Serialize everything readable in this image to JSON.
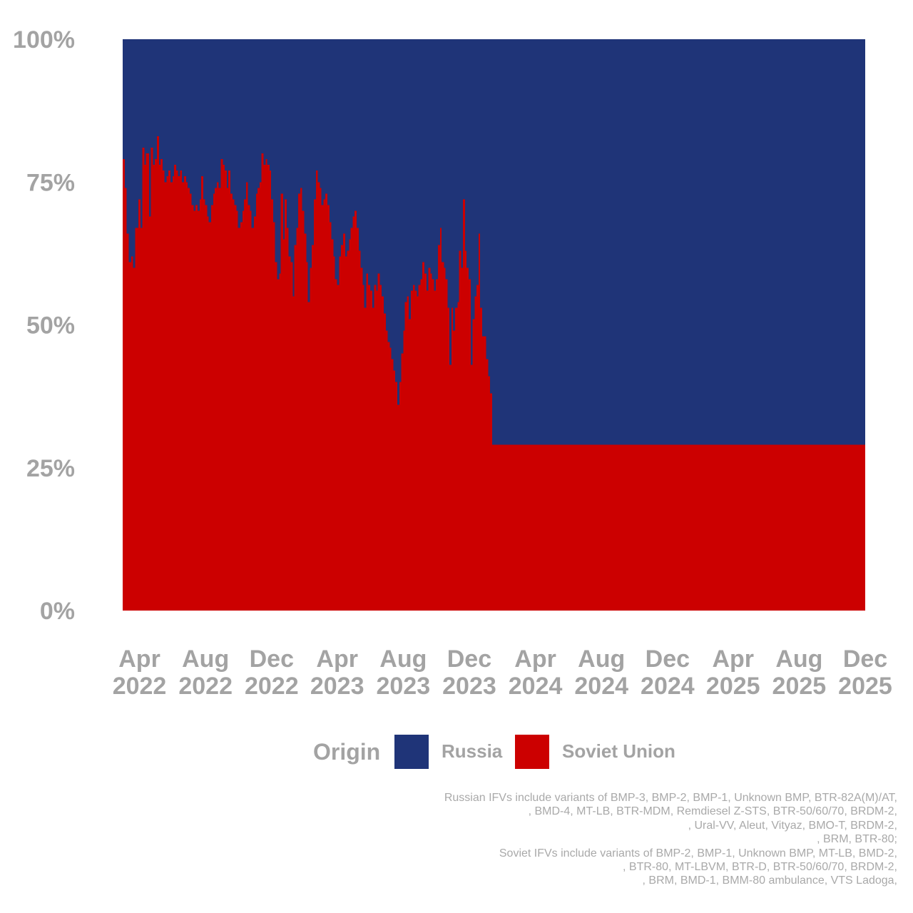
{
  "chart_data": {
    "type": "area",
    "subtype": "100% stacked step area",
    "legend_title": "Origin",
    "legend_placement": "bottom",
    "grid": false,
    "ylim": [
      0,
      100
    ],
    "y_ticks": [
      "0%",
      "25%",
      "50%",
      "75%",
      "100%"
    ],
    "x_ticks": [
      {
        "date": "2022-04-01",
        "month": "Apr",
        "year": "2022"
      },
      {
        "date": "2022-08-01",
        "month": "Aug",
        "year": "2022"
      },
      {
        "date": "2022-12-01",
        "month": "Dec",
        "year": "2022"
      },
      {
        "date": "2023-04-01",
        "month": "Apr",
        "year": "2023"
      },
      {
        "date": "2023-08-01",
        "month": "Aug",
        "year": "2023"
      },
      {
        "date": "2023-12-01",
        "month": "Dec",
        "year": "2023"
      },
      {
        "date": "2024-04-01",
        "month": "Apr",
        "year": "2024"
      },
      {
        "date": "2024-08-01",
        "month": "Aug",
        "year": "2024"
      },
      {
        "date": "2024-12-01",
        "month": "Dec",
        "year": "2024"
      },
      {
        "date": "2025-04-01",
        "month": "Apr",
        "year": "2025"
      },
      {
        "date": "2025-08-01",
        "month": "Aug",
        "year": "2025"
      },
      {
        "date": "2025-12-01",
        "month": "Dec",
        "year": "2025"
      }
    ],
    "xlim": [
      "2022-03-01",
      "2025-12-01"
    ],
    "series": [
      {
        "name": "Russia",
        "color": "#1f3478",
        "description": "remainder to 100%"
      },
      {
        "name": "Soviet Union",
        "color": "#cc0000",
        "points": [
          [
            "2022-03-01",
            79
          ],
          [
            "2022-03-05",
            74
          ],
          [
            "2022-03-08",
            66
          ],
          [
            "2022-03-12",
            61
          ],
          [
            "2022-03-17",
            62
          ],
          [
            "2022-03-20",
            60
          ],
          [
            "2022-03-24",
            67
          ],
          [
            "2022-03-30",
            72
          ],
          [
            "2022-04-03",
            67
          ],
          [
            "2022-04-06",
            81
          ],
          [
            "2022-04-10",
            78
          ],
          [
            "2022-04-13",
            80
          ],
          [
            "2022-04-19",
            69
          ],
          [
            "2022-04-22",
            81
          ],
          [
            "2022-04-26",
            78
          ],
          [
            "2022-04-29",
            79
          ],
          [
            "2022-05-03",
            83
          ],
          [
            "2022-05-07",
            78
          ],
          [
            "2022-05-10",
            79
          ],
          [
            "2022-05-14",
            77
          ],
          [
            "2022-05-17",
            75
          ],
          [
            "2022-05-21",
            76
          ],
          [
            "2022-05-24",
            77
          ],
          [
            "2022-05-28",
            75
          ],
          [
            "2022-06-01",
            76
          ],
          [
            "2022-06-04",
            78
          ],
          [
            "2022-06-08",
            77
          ],
          [
            "2022-06-11",
            76
          ],
          [
            "2022-06-15",
            77
          ],
          [
            "2022-06-18",
            75
          ],
          [
            "2022-06-22",
            76
          ],
          [
            "2022-06-26",
            75
          ],
          [
            "2022-06-29",
            74
          ],
          [
            "2022-07-03",
            73
          ],
          [
            "2022-07-06",
            71
          ],
          [
            "2022-07-10",
            70
          ],
          [
            "2022-07-13",
            71
          ],
          [
            "2022-07-17",
            70
          ],
          [
            "2022-07-21",
            72
          ],
          [
            "2022-07-24",
            76
          ],
          [
            "2022-07-28",
            72
          ],
          [
            "2022-07-31",
            71
          ],
          [
            "2022-08-04",
            69
          ],
          [
            "2022-08-07",
            68
          ],
          [
            "2022-08-11",
            71
          ],
          [
            "2022-08-15",
            73
          ],
          [
            "2022-08-18",
            74
          ],
          [
            "2022-08-22",
            75
          ],
          [
            "2022-08-25",
            74
          ],
          [
            "2022-08-29",
            79
          ],
          [
            "2022-09-02",
            78
          ],
          [
            "2022-09-05",
            77
          ],
          [
            "2022-09-09",
            74
          ],
          [
            "2022-09-12",
            77
          ],
          [
            "2022-09-16",
            73
          ],
          [
            "2022-09-20",
            72
          ],
          [
            "2022-09-23",
            71
          ],
          [
            "2022-09-27",
            70
          ],
          [
            "2022-09-30",
            67
          ],
          [
            "2022-10-04",
            68
          ],
          [
            "2022-10-08",
            70
          ],
          [
            "2022-10-11",
            72
          ],
          [
            "2022-10-15",
            75
          ],
          [
            "2022-10-18",
            71
          ],
          [
            "2022-10-22",
            70
          ],
          [
            "2022-10-25",
            67
          ],
          [
            "2022-10-29",
            69
          ],
          [
            "2022-11-02",
            73
          ],
          [
            "2022-11-05",
            74
          ],
          [
            "2022-11-09",
            75
          ],
          [
            "2022-11-12",
            80
          ],
          [
            "2022-11-16",
            78
          ],
          [
            "2022-11-20",
            79
          ],
          [
            "2022-11-23",
            78
          ],
          [
            "2022-11-27",
            77
          ],
          [
            "2022-11-30",
            72
          ],
          [
            "2022-12-04",
            68
          ],
          [
            "2022-12-07",
            61
          ],
          [
            "2022-12-11",
            58
          ],
          [
            "2022-12-15",
            59
          ],
          [
            "2022-12-18",
            73
          ],
          [
            "2022-12-22",
            65
          ],
          [
            "2022-12-25",
            72
          ],
          [
            "2022-12-29",
            67
          ],
          [
            "2023-01-01",
            62
          ],
          [
            "2023-01-05",
            61
          ],
          [
            "2023-01-09",
            55
          ],
          [
            "2023-01-12",
            64
          ],
          [
            "2023-01-16",
            67
          ],
          [
            "2023-01-19",
            73
          ],
          [
            "2023-01-23",
            74
          ],
          [
            "2023-01-26",
            70
          ],
          [
            "2023-01-30",
            66
          ],
          [
            "2023-02-03",
            61
          ],
          [
            "2023-02-06",
            54
          ],
          [
            "2023-02-10",
            60
          ],
          [
            "2023-02-13",
            64
          ],
          [
            "2023-02-17",
            72
          ],
          [
            "2023-02-21",
            77
          ],
          [
            "2023-02-24",
            75
          ],
          [
            "2023-02-28",
            74
          ],
          [
            "2023-03-03",
            71
          ],
          [
            "2023-03-07",
            72
          ],
          [
            "2023-03-10",
            73
          ],
          [
            "2023-03-14",
            71
          ],
          [
            "2023-03-18",
            68
          ],
          [
            "2023-03-21",
            65
          ],
          [
            "2023-03-25",
            62
          ],
          [
            "2023-03-28",
            58
          ],
          [
            "2023-04-01",
            57
          ],
          [
            "2023-04-05",
            62
          ],
          [
            "2023-04-08",
            64
          ],
          [
            "2023-04-12",
            66
          ],
          [
            "2023-04-16",
            62
          ],
          [
            "2023-04-19",
            63
          ],
          [
            "2023-04-23",
            65
          ],
          [
            "2023-04-26",
            67
          ],
          [
            "2023-04-30",
            69
          ],
          [
            "2023-05-03",
            70
          ],
          [
            "2023-05-07",
            67
          ],
          [
            "2023-05-11",
            63
          ],
          [
            "2023-05-14",
            60
          ],
          [
            "2023-05-18",
            57
          ],
          [
            "2023-05-21",
            53
          ],
          [
            "2023-05-25",
            59
          ],
          [
            "2023-05-28",
            57
          ],
          [
            "2023-06-01",
            56
          ],
          [
            "2023-06-05",
            53
          ],
          [
            "2023-06-08",
            57
          ],
          [
            "2023-06-12",
            56
          ],
          [
            "2023-06-15",
            59
          ],
          [
            "2023-06-19",
            57
          ],
          [
            "2023-06-22",
            55
          ],
          [
            "2023-06-26",
            52
          ],
          [
            "2023-06-30",
            49
          ],
          [
            "2023-07-03",
            47
          ],
          [
            "2023-07-07",
            46
          ],
          [
            "2023-07-10",
            44
          ],
          [
            "2023-07-14",
            42
          ],
          [
            "2023-07-17",
            40
          ],
          [
            "2023-07-21",
            36
          ],
          [
            "2023-07-25",
            40
          ],
          [
            "2023-07-28",
            45
          ],
          [
            "2023-08-01",
            49
          ],
          [
            "2023-08-04",
            54
          ],
          [
            "2023-08-08",
            55
          ],
          [
            "2023-08-11",
            51
          ],
          [
            "2023-08-15",
            56
          ],
          [
            "2023-08-19",
            57
          ],
          [
            "2023-08-22",
            56
          ],
          [
            "2023-08-26",
            55
          ],
          [
            "2023-08-29",
            57
          ],
          [
            "2023-09-02",
            58
          ],
          [
            "2023-09-05",
            61
          ],
          [
            "2023-09-09",
            59
          ],
          [
            "2023-09-13",
            56
          ],
          [
            "2023-09-16",
            60
          ],
          [
            "2023-09-20",
            59
          ],
          [
            "2023-09-23",
            58
          ],
          [
            "2023-09-27",
            56
          ],
          [
            "2023-09-30",
            58
          ],
          [
            "2023-10-04",
            64
          ],
          [
            "2023-10-08",
            67
          ],
          [
            "2023-10-11",
            61
          ],
          [
            "2023-10-15",
            60
          ],
          [
            "2023-10-18",
            58
          ],
          [
            "2023-10-22",
            53
          ],
          [
            "2023-10-25",
            43
          ],
          [
            "2023-10-29",
            53
          ],
          [
            "2023-11-01",
            49
          ],
          [
            "2023-11-05",
            53
          ],
          [
            "2023-11-09",
            54
          ],
          [
            "2023-11-12",
            63
          ],
          [
            "2023-11-16",
            60
          ],
          [
            "2023-11-19",
            72
          ],
          [
            "2023-11-23",
            63
          ],
          [
            "2023-11-26",
            60
          ],
          [
            "2023-11-30",
            58
          ],
          [
            "2023-12-04",
            43
          ],
          [
            "2023-12-07",
            51
          ],
          [
            "2023-12-11",
            55
          ],
          [
            "2023-12-14",
            57
          ],
          [
            "2023-12-18",
            66
          ],
          [
            "2023-12-21",
            53
          ],
          [
            "2023-12-25",
            48
          ],
          [
            "2023-12-28",
            48
          ],
          [
            "2024-01-01",
            44
          ],
          [
            "2024-01-05",
            41
          ],
          [
            "2024-01-08",
            38
          ],
          [
            "2024-01-12",
            29
          ]
        ]
      }
    ]
  },
  "legend": {
    "title": "Origin",
    "items": [
      {
        "label": "Russia",
        "color": "#1f3478"
      },
      {
        "label": "Soviet Union",
        "color": "#cc0000"
      }
    ]
  },
  "caption": [
    "Russian IFVs include variants of BMP-3, BMP-2, BMP-1, Unknown BMP, BTR-82A(M)/AT,",
    ", BMD-4, MT-LB, BTR-MDM, Remdiesel Z-STS, BTR-50/60/70, BRDM-2,",
    ", Ural-VV, Aleut, Vityaz, BMO-T, BRDM-2,",
    ", BRM, BTR-80;",
    "Soviet IFVs include variants of BMP-2, BMP-1, Unknown BMP, MT-LB, BMD-2,",
    ", BTR-80, MT-LBVM, BTR-D, BTR-50/60/70, BRDM-2,",
    ", BRM, BMD-1, BMM-80 ambulance, VTS Ladoga,"
  ]
}
